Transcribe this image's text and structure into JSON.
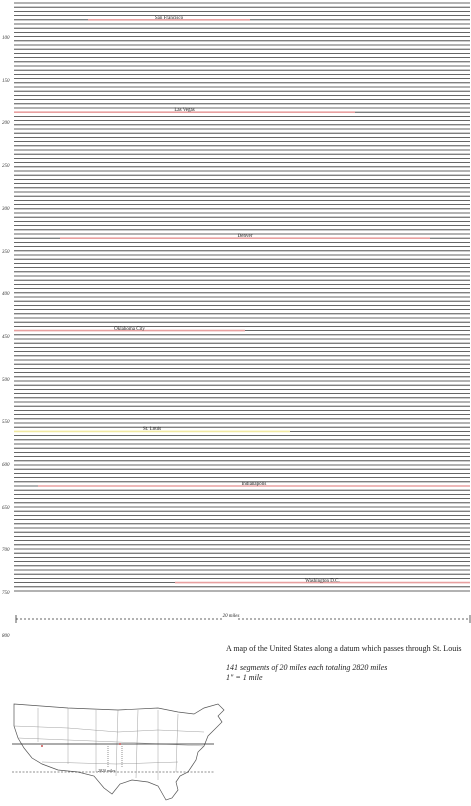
{
  "mile_markers": [
    "100",
    "150",
    "200",
    "250",
    "300",
    "350",
    "400",
    "450",
    "500",
    "550",
    "600",
    "650",
    "700",
    "750",
    "800"
  ],
  "cities": [
    {
      "name": "San Francisco",
      "line": 4
    },
    {
      "name": "Las Vegas",
      "line": 26
    },
    {
      "name": "Denver",
      "line": 56
    },
    {
      "name": "Oklahoma City",
      "line": 78
    },
    {
      "name": "St. Louis",
      "line": 102
    },
    {
      "name": "Indianapolis",
      "line": 115
    },
    {
      "name": "Washington D.C.",
      "line": 138
    }
  ],
  "scale_label": "20 miles",
  "description": {
    "title": "A map of the United States along a datum which passes through St. Louis",
    "segments": "141 segments of 20 miles each totaling 2820 miles",
    "inch": "1\" = 1 mile"
  },
  "inset_label": "2820 miles",
  "colors": {
    "line": "#333333",
    "highlight": "#e8a0a0",
    "stlouis": "#f0e8a0"
  }
}
